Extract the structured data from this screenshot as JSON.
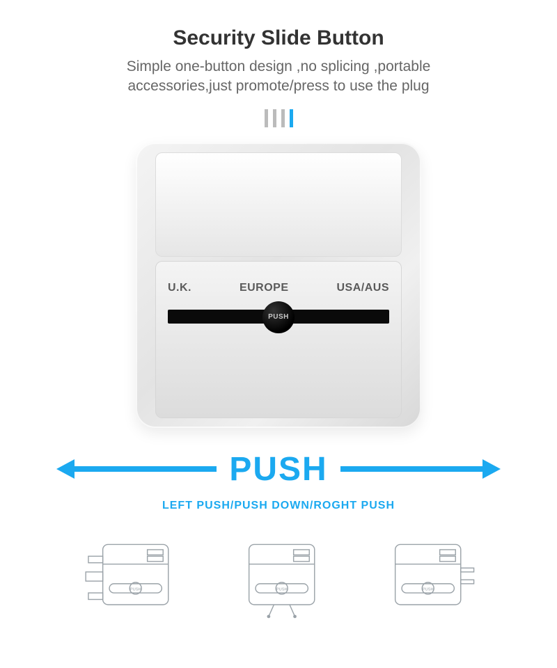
{
  "header": {
    "title": "Security Slide Button",
    "subtitle_line1": "Simple one-button design ,no splicing ,portable",
    "subtitle_line2": "accessories,just promote/press to use the plug"
  },
  "indicators": {
    "count": 4,
    "active_index": 3,
    "inactive_color": "#bbbbbb",
    "active_color": "#1ba9f0"
  },
  "adapter": {
    "labels": [
      "U.K.",
      "EUROPE",
      "USA/AUS"
    ],
    "knob_text": "PUSH",
    "body_gradient_from": "#f4f4f4",
    "body_gradient_to": "#d8d8d8",
    "label_color": "#5a5a5a",
    "track_color": "#0a0a0a"
  },
  "push": {
    "label": "PUSH",
    "color": "#1ba9f0",
    "directions": "LEFT PUSH/PUSH DOWN/ROGHT PUSH",
    "arrow_stroke_width": 8
  },
  "diagrams": {
    "stroke_color": "#9aa2a8",
    "stroke_width": 1.5,
    "push_tiny_text": "PUSH",
    "items": [
      {
        "type": "left-plug"
      },
      {
        "type": "down-plug"
      },
      {
        "type": "right-plug"
      }
    ]
  },
  "colors": {
    "title": "#333333",
    "subtitle": "#666666",
    "background": "#ffffff"
  }
}
